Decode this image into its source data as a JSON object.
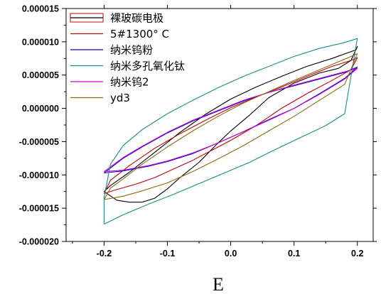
{
  "chart_data": {
    "type": "line",
    "title": "",
    "xlabel": "E",
    "ylabel": "",
    "xlim": [
      -0.26,
      0.225
    ],
    "ylim": [
      -2e-05,
      1.5e-05
    ],
    "x_ticks": [
      {
        "value": -0.2,
        "label": "-0.2"
      },
      {
        "value": -0.1,
        "label": "-0.1"
      },
      {
        "value": 0.0,
        "label": "0.0"
      },
      {
        "value": 0.1,
        "label": "0.1"
      },
      {
        "value": 0.2,
        "label": "0.2"
      }
    ],
    "y_ticks": [
      {
        "value": 1.5e-05,
        "label": "0.000015"
      },
      {
        "value": 1e-05,
        "label": "0.000010"
      },
      {
        "value": 5e-06,
        "label": "0.000005"
      },
      {
        "value": 0.0,
        "label": "0.000000"
      },
      {
        "value": -5e-06,
        "label": "-0.000005"
      },
      {
        "value": -1e-05,
        "label": "-0.000010"
      },
      {
        "value": -1.5e-05,
        "label": "-0.000015"
      },
      {
        "value": -2e-05,
        "label": "-0.000020"
      }
    ],
    "legend_position": "top-left",
    "series": [
      {
        "name": "裸玻碳电极",
        "color": "#000000",
        "points": [
          [
            -0.2,
            -1.25e-05
          ],
          [
            -0.18,
            -1.38e-05
          ],
          [
            -0.16,
            -1.41e-05
          ],
          [
            -0.14,
            -1.41e-05
          ],
          [
            -0.12,
            -1.35e-05
          ],
          [
            -0.1,
            -1.21e-05
          ],
          [
            -0.08,
            -1.04e-05
          ],
          [
            -0.05,
            -8.1e-06
          ],
          [
            -0.02,
            -5.2e-06
          ],
          [
            0.0,
            -3.4e-06
          ],
          [
            0.03,
            -1e-06
          ],
          [
            0.06,
            1.6e-06
          ],
          [
            0.1,
            3.8e-06
          ],
          [
            0.14,
            5.3e-06
          ],
          [
            0.17,
            6e-06
          ],
          [
            0.19,
            7.2e-06
          ],
          [
            0.2,
            9.3e-06
          ],
          [
            0.198,
            8.8e-06
          ],
          [
            0.16,
            7.5e-06
          ],
          [
            0.12,
            6.3e-06
          ],
          [
            0.08,
            4.8e-06
          ],
          [
            0.04,
            3.2e-06
          ],
          [
            0.0,
            1.4e-06
          ],
          [
            -0.04,
            -9e-07
          ],
          [
            -0.08,
            -3.6e-06
          ],
          [
            -0.12,
            -6.6e-06
          ],
          [
            -0.16,
            -9.6e-06
          ],
          [
            -0.19,
            -1.16e-05
          ],
          [
            -0.2,
            -1.25e-05
          ]
        ]
      },
      {
        "name": "5#1300° C",
        "color": "#c00000",
        "points": [
          [
            -0.2,
            -1.28e-05
          ],
          [
            -0.18,
            -1.22e-05
          ],
          [
            -0.15,
            -1.14e-05
          ],
          [
            -0.12,
            -1.04e-05
          ],
          [
            -0.09,
            -9.1e-06
          ],
          [
            -0.06,
            -7.8e-06
          ],
          [
            -0.03,
            -6.3e-06
          ],
          [
            0.0,
            -4.8e-06
          ],
          [
            0.04,
            -2.6e-06
          ],
          [
            0.08,
            0.0
          ],
          [
            0.12,
            2.2e-06
          ],
          [
            0.16,
            4.2e-06
          ],
          [
            0.19,
            5.8e-06
          ],
          [
            0.2,
            7.6e-06
          ],
          [
            0.19,
            7.2e-06
          ],
          [
            0.16,
            6.3e-06
          ],
          [
            0.12,
            4.8e-06
          ],
          [
            0.08,
            3.2e-06
          ],
          [
            0.04,
            1.7e-06
          ],
          [
            0.0,
            1e-07
          ],
          [
            -0.04,
            -1.8e-06
          ],
          [
            -0.08,
            -3.8e-06
          ],
          [
            -0.12,
            -6e-06
          ],
          [
            -0.16,
            -8.6e-06
          ],
          [
            -0.19,
            -1.08e-05
          ],
          [
            -0.2,
            -1.28e-05
          ]
        ]
      },
      {
        "name": "纳米钨粉",
        "color": "#0000cc",
        "points": [
          [
            -0.2,
            -9.7e-06
          ],
          [
            -0.17,
            -9.4e-06
          ],
          [
            -0.13,
            -8.7e-06
          ],
          [
            -0.1,
            -8e-06
          ],
          [
            -0.06,
            -6.8e-06
          ],
          [
            -0.02,
            -5.2e-06
          ],
          [
            0.02,
            -3.5e-06
          ],
          [
            0.06,
            -1.7e-06
          ],
          [
            0.1,
            0.0
          ],
          [
            0.14,
            2.2e-06
          ],
          [
            0.18,
            4.5e-06
          ],
          [
            0.2,
            6.2e-06
          ],
          [
            0.18,
            5.4e-06
          ],
          [
            0.14,
            4.4e-06
          ],
          [
            0.1,
            3.4e-06
          ],
          [
            0.06,
            2.4e-06
          ],
          [
            0.02,
            1.1e-06
          ],
          [
            -0.02,
            -4e-07
          ],
          [
            -0.06,
            -1.9e-06
          ],
          [
            -0.1,
            -3.7e-06
          ],
          [
            -0.14,
            -5.8e-06
          ],
          [
            -0.17,
            -7.5e-06
          ],
          [
            -0.2,
            -9.7e-06
          ]
        ]
      },
      {
        "name": "纳米多孔氧化钛",
        "color": "#1a8a8a",
        "points": [
          [
            -0.2,
            -1.74e-05
          ],
          [
            -0.17,
            -1.6e-05
          ],
          [
            -0.13,
            -1.44e-05
          ],
          [
            -0.09,
            -1.29e-05
          ],
          [
            -0.05,
            -1.13e-05
          ],
          [
            -0.01,
            -9.7e-06
          ],
          [
            0.03,
            -8.1e-06
          ],
          [
            0.07,
            -6.2e-06
          ],
          [
            0.11,
            -4.4e-06
          ],
          [
            0.15,
            -2.6e-06
          ],
          [
            0.18,
            -8e-07
          ],
          [
            0.2,
            1.05e-05
          ],
          [
            0.18,
            9.9e-06
          ],
          [
            0.14,
            9e-06
          ],
          [
            0.1,
            7.8e-06
          ],
          [
            0.06,
            6.3e-06
          ],
          [
            0.02,
            4.8e-06
          ],
          [
            -0.02,
            3.1e-06
          ],
          [
            -0.06,
            1.2e-06
          ],
          [
            -0.1,
            -8e-07
          ],
          [
            -0.14,
            -3.2e-06
          ],
          [
            -0.17,
            -5.6e-06
          ],
          [
            -0.19,
            -8.4e-06
          ],
          [
            -0.2,
            -1.34e-05
          ],
          [
            -0.2,
            -1.74e-05
          ]
        ]
      },
      {
        "name": "纳米钨2",
        "color": "#cc00cc",
        "points": [
          [
            -0.2,
            -9.5e-06
          ],
          [
            -0.17,
            -9.3e-06
          ],
          [
            -0.13,
            -8.6e-06
          ],
          [
            -0.1,
            -7.9e-06
          ],
          [
            -0.06,
            -6.7e-06
          ],
          [
            -0.02,
            -5.2e-06
          ],
          [
            0.02,
            -3.5e-06
          ],
          [
            0.06,
            -1.8e-06
          ],
          [
            0.1,
            0.0
          ],
          [
            0.14,
            2.1e-06
          ],
          [
            0.18,
            4.4e-06
          ],
          [
            0.2,
            6e-06
          ],
          [
            0.18,
            5.5e-06
          ],
          [
            0.14,
            4.5e-06
          ],
          [
            0.1,
            3.5e-06
          ],
          [
            0.06,
            2.4e-06
          ],
          [
            0.02,
            1.2e-06
          ],
          [
            -0.02,
            -3e-07
          ],
          [
            -0.06,
            -1.8e-06
          ],
          [
            -0.1,
            -3.6e-06
          ],
          [
            -0.14,
            -5.7e-06
          ],
          [
            -0.17,
            -7.4e-06
          ],
          [
            -0.2,
            -9.5e-06
          ]
        ]
      },
      {
        "name": "yd3",
        "color": "#8b6914",
        "points": [
          [
            -0.2,
            -1.37e-05
          ],
          [
            -0.17,
            -1.32e-05
          ],
          [
            -0.14,
            -1.24e-05
          ],
          [
            -0.1,
            -1.12e-05
          ],
          [
            -0.06,
            -9.5e-06
          ],
          [
            -0.02,
            -7.6e-06
          ],
          [
            0.02,
            -5.6e-06
          ],
          [
            0.06,
            -3.4e-06
          ],
          [
            0.1,
            -1.2e-06
          ],
          [
            0.14,
            1.2e-06
          ],
          [
            0.18,
            3.6e-06
          ],
          [
            0.2,
            8.2e-06
          ],
          [
            0.18,
            7.4e-06
          ],
          [
            0.14,
            5.8e-06
          ],
          [
            0.1,
            4.2e-06
          ],
          [
            0.06,
            2.5e-06
          ],
          [
            0.02,
            8e-07
          ],
          [
            -0.02,
            -1.2e-06
          ],
          [
            -0.06,
            -3.4e-06
          ],
          [
            -0.1,
            -5.8e-06
          ],
          [
            -0.14,
            -8.4e-06
          ],
          [
            -0.17,
            -1.06e-05
          ],
          [
            -0.19,
            -1.2e-05
          ],
          [
            -0.2,
            -1.37e-05
          ]
        ]
      }
    ]
  }
}
